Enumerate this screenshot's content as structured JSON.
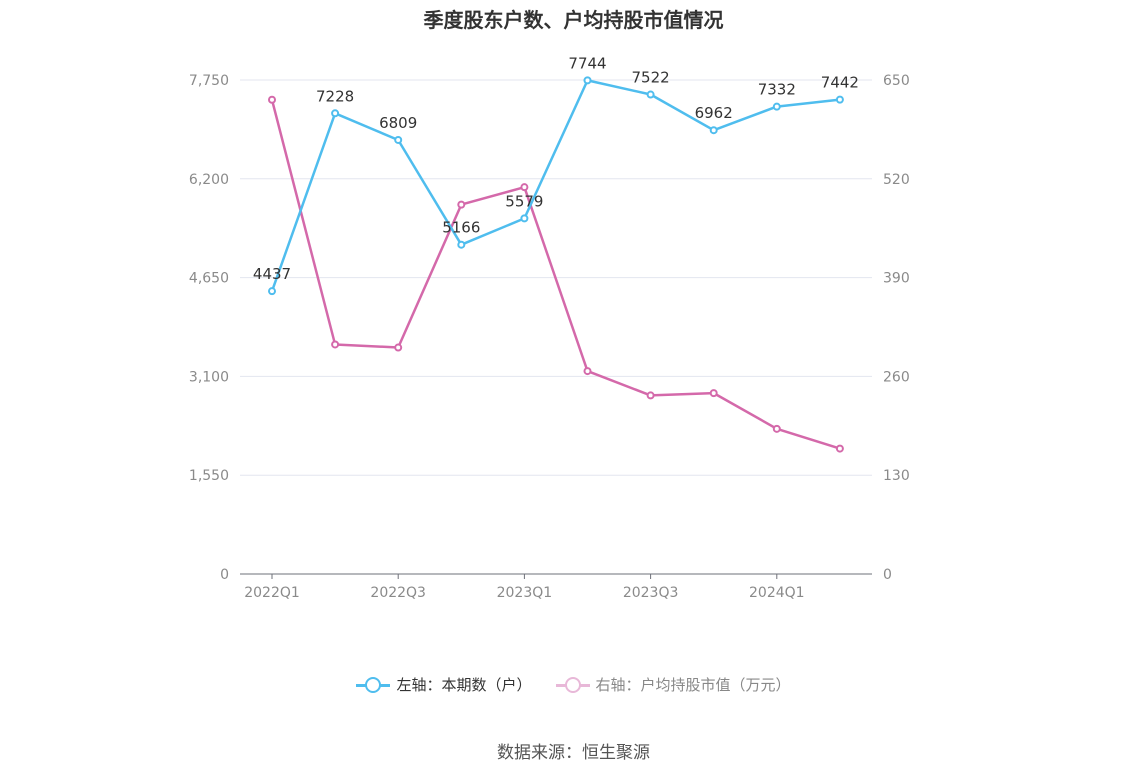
{
  "chart_data": {
    "type": "line",
    "title": "季度股东户数、户均持股市值情况",
    "categories": [
      "2022Q1",
      "2022Q2",
      "2022Q3",
      "2022Q4",
      "2023Q1",
      "2023Q2",
      "2023Q3",
      "2023Q4",
      "2024Q1",
      "2024Q2"
    ],
    "x_tick_labels": [
      "2022Q1",
      "2022Q3",
      "2023Q1",
      "2023Q3",
      "2024Q1"
    ],
    "left_axis": {
      "min": 0,
      "max": 7750,
      "ticks": [
        "0",
        "1,550",
        "3,100",
        "4,650",
        "6,200",
        "7,750"
      ]
    },
    "right_axis": {
      "min": 0,
      "max": 650,
      "ticks": [
        "0",
        "130",
        "260",
        "390",
        "520",
        "650"
      ]
    },
    "series": [
      {
        "name": "左轴：本期数（户）",
        "axis": "left",
        "color": "#4fbdee",
        "values": [
          4437,
          7228,
          6809,
          5166,
          5579,
          7744,
          7522,
          6962,
          7332,
          7442
        ],
        "labels": [
          "4437",
          "7228",
          "6809",
          "5166",
          "5579",
          "7744",
          "7522",
          "6962",
          "7332",
          "7442"
        ]
      },
      {
        "name": "右轴：户均持股市值（万元）",
        "axis": "right",
        "color": "#d469aa",
        "values": [
          624,
          302,
          298,
          486,
          509,
          267,
          235,
          238,
          191,
          165
        ]
      }
    ],
    "grid": true,
    "legend_position": "bottom"
  },
  "source": "数据来源：恒生聚源"
}
